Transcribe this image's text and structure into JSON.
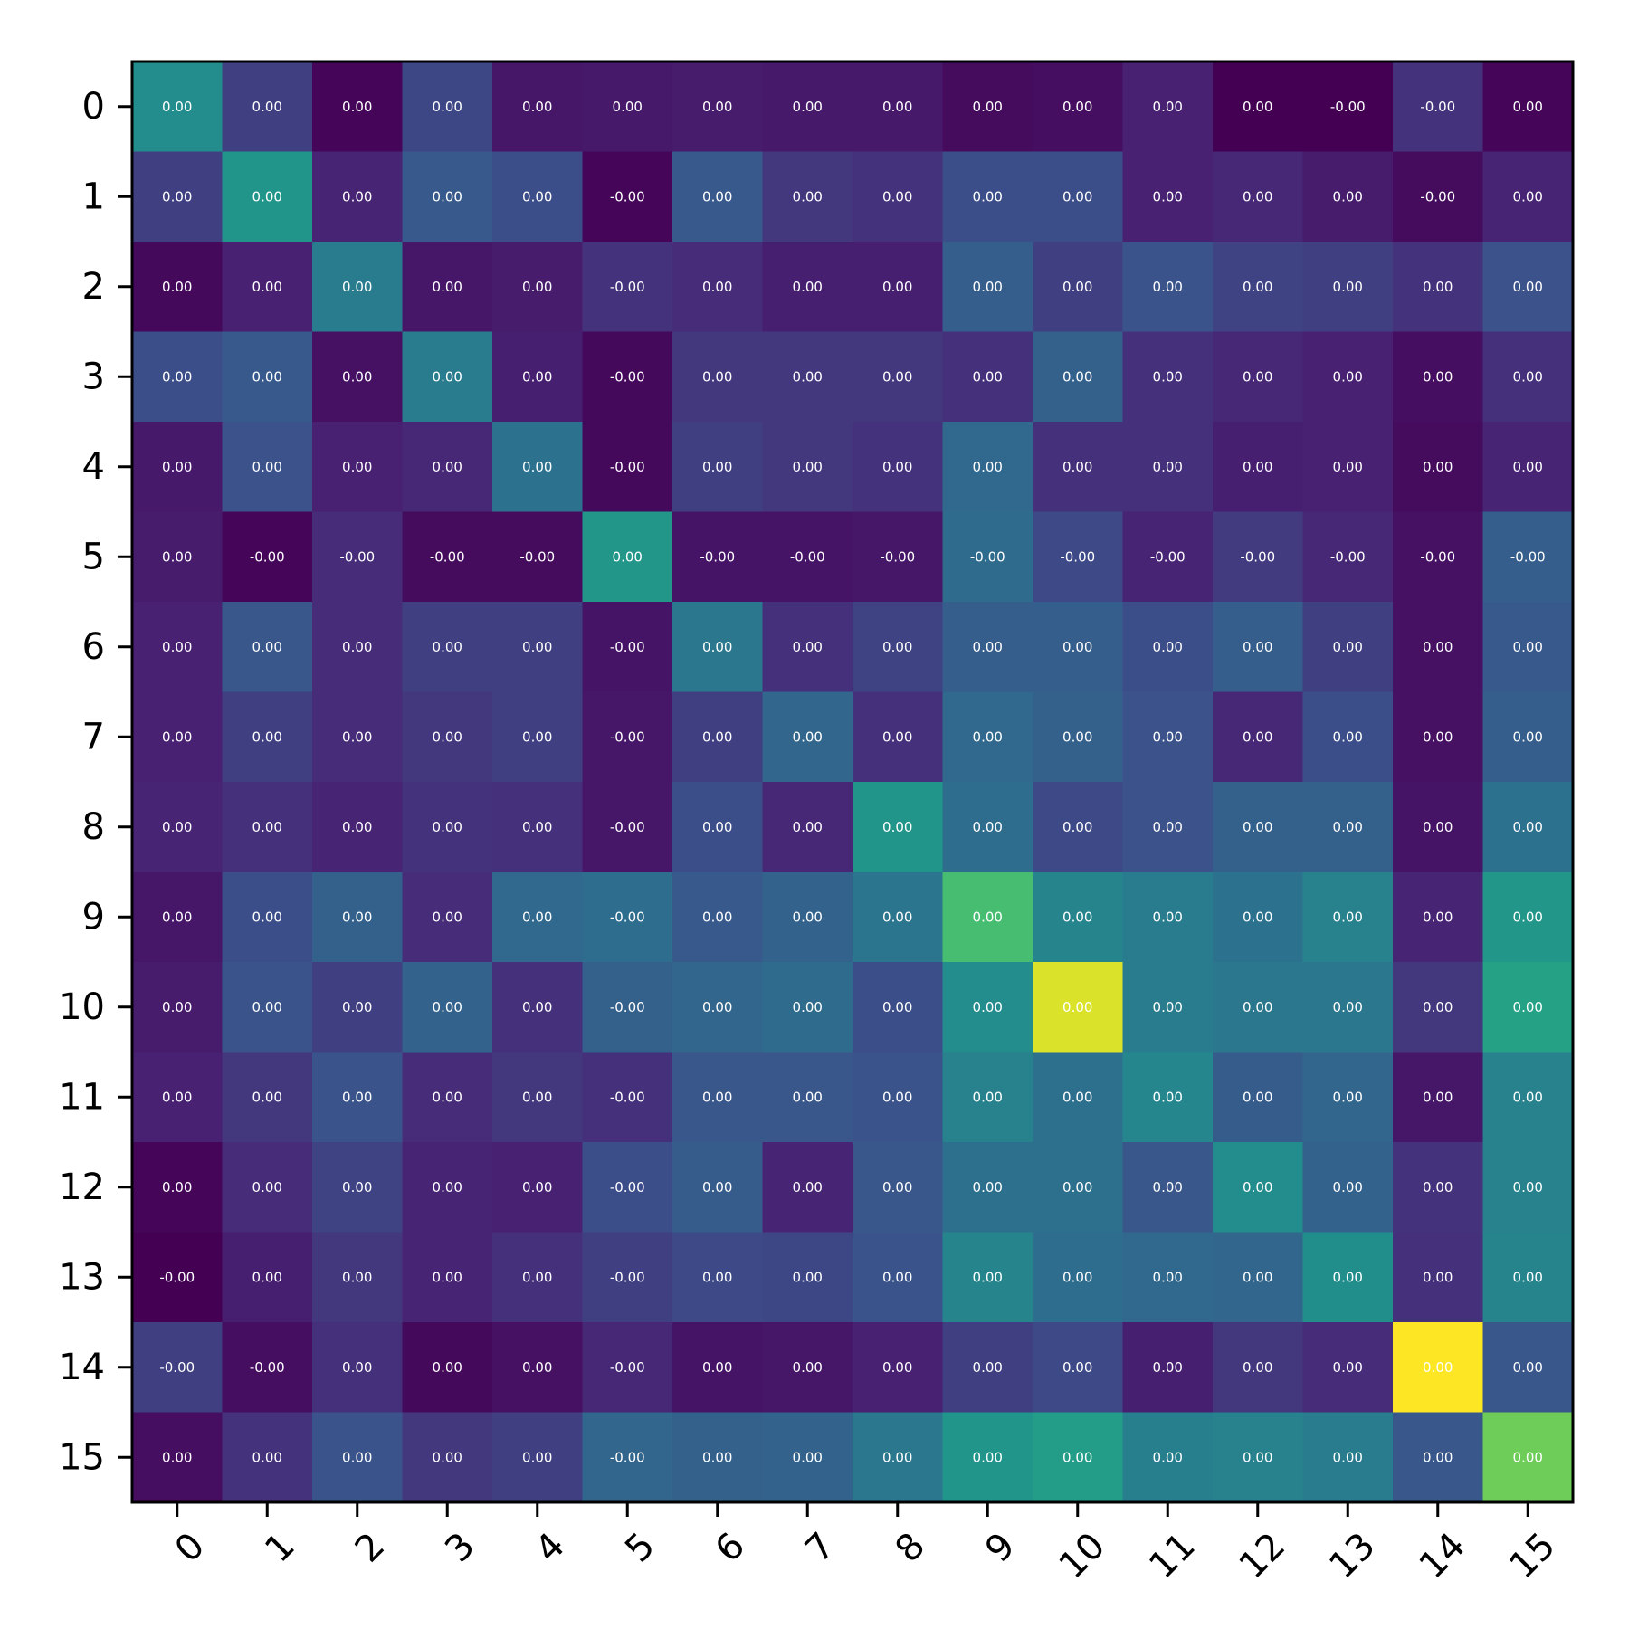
{
  "chart_data": {
    "type": "heatmap",
    "title": "",
    "xlabel": "",
    "ylabel": "",
    "x_categories": [
      "0",
      "1",
      "2",
      "3",
      "4",
      "5",
      "6",
      "7",
      "8",
      "9",
      "10",
      "11",
      "12",
      "13",
      "14",
      "15"
    ],
    "y_categories": [
      "0",
      "1",
      "2",
      "3",
      "4",
      "5",
      "6",
      "7",
      "8",
      "9",
      "10",
      "11",
      "12",
      "13",
      "14",
      "15"
    ],
    "colormap": "viridis",
    "cell_labels": [
      [
        "0.00",
        "0.00",
        "0.00",
        "0.00",
        "0.00",
        "0.00",
        "0.00",
        "0.00",
        "0.00",
        "0.00",
        "0.00",
        "0.00",
        "0.00",
        "-0.00",
        "-0.00",
        "0.00"
      ],
      [
        "0.00",
        "0.00",
        "0.00",
        "0.00",
        "0.00",
        "-0.00",
        "0.00",
        "0.00",
        "0.00",
        "0.00",
        "0.00",
        "0.00",
        "0.00",
        "0.00",
        "-0.00",
        "0.00"
      ],
      [
        "0.00",
        "0.00",
        "0.00",
        "0.00",
        "0.00",
        "-0.00",
        "0.00",
        "0.00",
        "0.00",
        "0.00",
        "0.00",
        "0.00",
        "0.00",
        "0.00",
        "0.00",
        "0.00"
      ],
      [
        "0.00",
        "0.00",
        "0.00",
        "0.00",
        "0.00",
        "-0.00",
        "0.00",
        "0.00",
        "0.00",
        "0.00",
        "0.00",
        "0.00",
        "0.00",
        "0.00",
        "0.00",
        "0.00"
      ],
      [
        "0.00",
        "0.00",
        "0.00",
        "0.00",
        "0.00",
        "-0.00",
        "0.00",
        "0.00",
        "0.00",
        "0.00",
        "0.00",
        "0.00",
        "0.00",
        "0.00",
        "0.00",
        "0.00"
      ],
      [
        "0.00",
        "-0.00",
        "-0.00",
        "-0.00",
        "-0.00",
        "0.00",
        "-0.00",
        "-0.00",
        "-0.00",
        "-0.00",
        "-0.00",
        "-0.00",
        "-0.00",
        "-0.00",
        "-0.00",
        "-0.00"
      ],
      [
        "0.00",
        "0.00",
        "0.00",
        "0.00",
        "0.00",
        "-0.00",
        "0.00",
        "0.00",
        "0.00",
        "0.00",
        "0.00",
        "0.00",
        "0.00",
        "0.00",
        "0.00",
        "0.00"
      ],
      [
        "0.00",
        "0.00",
        "0.00",
        "0.00",
        "0.00",
        "-0.00",
        "0.00",
        "0.00",
        "0.00",
        "0.00",
        "0.00",
        "0.00",
        "0.00",
        "0.00",
        "0.00",
        "0.00"
      ],
      [
        "0.00",
        "0.00",
        "0.00",
        "0.00",
        "0.00",
        "-0.00",
        "0.00",
        "0.00",
        "0.00",
        "0.00",
        "0.00",
        "0.00",
        "0.00",
        "0.00",
        "0.00",
        "0.00"
      ],
      [
        "0.00",
        "0.00",
        "0.00",
        "0.00",
        "0.00",
        "-0.00",
        "0.00",
        "0.00",
        "0.00",
        "0.00",
        "0.00",
        "0.00",
        "0.00",
        "0.00",
        "0.00",
        "0.00"
      ],
      [
        "0.00",
        "0.00",
        "0.00",
        "0.00",
        "0.00",
        "-0.00",
        "0.00",
        "0.00",
        "0.00",
        "0.00",
        "0.00",
        "0.00",
        "0.00",
        "0.00",
        "0.00",
        "0.00"
      ],
      [
        "0.00",
        "0.00",
        "0.00",
        "0.00",
        "0.00",
        "-0.00",
        "0.00",
        "0.00",
        "0.00",
        "0.00",
        "0.00",
        "0.00",
        "0.00",
        "0.00",
        "0.00",
        "0.00"
      ],
      [
        "0.00",
        "0.00",
        "0.00",
        "0.00",
        "0.00",
        "-0.00",
        "0.00",
        "0.00",
        "0.00",
        "0.00",
        "0.00",
        "0.00",
        "0.00",
        "0.00",
        "0.00",
        "0.00"
      ],
      [
        "-0.00",
        "0.00",
        "0.00",
        "0.00",
        "0.00",
        "-0.00",
        "0.00",
        "0.00",
        "0.00",
        "0.00",
        "0.00",
        "0.00",
        "0.00",
        "0.00",
        "0.00",
        "0.00"
      ],
      [
        "-0.00",
        "-0.00",
        "0.00",
        "0.00",
        "0.00",
        "-0.00",
        "0.00",
        "0.00",
        "0.00",
        "0.00",
        "0.00",
        "0.00",
        "0.00",
        "0.00",
        "0.00",
        "0.00"
      ],
      [
        "0.00",
        "0.00",
        "0.00",
        "0.00",
        "0.00",
        "-0.00",
        "0.00",
        "0.00",
        "0.00",
        "0.00",
        "0.00",
        "0.00",
        "0.00",
        "0.00",
        "0.00",
        "0.00"
      ]
    ],
    "intensity": [
      [
        0.48,
        0.2,
        0.02,
        0.22,
        0.08,
        0.09,
        0.1,
        0.09,
        0.09,
        0.04,
        0.05,
        0.12,
        0.0,
        0.0,
        0.17,
        0.02
      ],
      [
        0.2,
        0.52,
        0.13,
        0.28,
        0.24,
        0.02,
        0.28,
        0.18,
        0.17,
        0.24,
        0.24,
        0.12,
        0.14,
        0.1,
        0.04,
        0.13
      ],
      [
        0.03,
        0.12,
        0.42,
        0.08,
        0.1,
        0.17,
        0.15,
        0.11,
        0.11,
        0.3,
        0.2,
        0.26,
        0.21,
        0.2,
        0.17,
        0.25
      ],
      [
        0.24,
        0.28,
        0.06,
        0.42,
        0.11,
        0.03,
        0.18,
        0.18,
        0.18,
        0.16,
        0.31,
        0.16,
        0.14,
        0.12,
        0.05,
        0.16
      ],
      [
        0.09,
        0.25,
        0.12,
        0.14,
        0.38,
        0.03,
        0.2,
        0.18,
        0.17,
        0.34,
        0.16,
        0.16,
        0.11,
        0.12,
        0.04,
        0.13
      ],
      [
        0.1,
        0.02,
        0.15,
        0.04,
        0.04,
        0.53,
        0.07,
        0.07,
        0.08,
        0.35,
        0.23,
        0.13,
        0.19,
        0.14,
        0.06,
        0.3
      ],
      [
        0.12,
        0.27,
        0.15,
        0.2,
        0.2,
        0.07,
        0.4,
        0.16,
        0.21,
        0.3,
        0.3,
        0.24,
        0.3,
        0.2,
        0.06,
        0.28
      ],
      [
        0.12,
        0.2,
        0.15,
        0.18,
        0.2,
        0.08,
        0.2,
        0.33,
        0.16,
        0.34,
        0.31,
        0.25,
        0.14,
        0.24,
        0.06,
        0.3
      ],
      [
        0.13,
        0.16,
        0.13,
        0.17,
        0.16,
        0.08,
        0.24,
        0.14,
        0.52,
        0.36,
        0.23,
        0.25,
        0.31,
        0.31,
        0.07,
        0.38
      ],
      [
        0.08,
        0.24,
        0.31,
        0.15,
        0.34,
        0.36,
        0.28,
        0.32,
        0.39,
        0.7,
        0.45,
        0.42,
        0.38,
        0.44,
        0.13,
        0.53
      ],
      [
        0.1,
        0.26,
        0.2,
        0.32,
        0.16,
        0.31,
        0.33,
        0.35,
        0.24,
        0.48,
        0.95,
        0.42,
        0.4,
        0.4,
        0.18,
        0.58
      ],
      [
        0.12,
        0.18,
        0.26,
        0.15,
        0.18,
        0.16,
        0.27,
        0.27,
        0.26,
        0.44,
        0.37,
        0.46,
        0.29,
        0.33,
        0.08,
        0.44
      ],
      [
        0.02,
        0.15,
        0.21,
        0.13,
        0.12,
        0.24,
        0.29,
        0.13,
        0.27,
        0.37,
        0.37,
        0.27,
        0.48,
        0.32,
        0.17,
        0.44
      ],
      [
        0.0,
        0.11,
        0.18,
        0.13,
        0.16,
        0.2,
        0.23,
        0.22,
        0.26,
        0.45,
        0.36,
        0.34,
        0.33,
        0.49,
        0.16,
        0.45
      ],
      [
        0.2,
        0.05,
        0.16,
        0.03,
        0.06,
        0.14,
        0.07,
        0.08,
        0.12,
        0.2,
        0.23,
        0.11,
        0.18,
        0.15,
        1.0,
        0.27
      ],
      [
        0.05,
        0.17,
        0.26,
        0.18,
        0.2,
        0.33,
        0.31,
        0.32,
        0.4,
        0.52,
        0.55,
        0.43,
        0.44,
        0.42,
        0.27,
        0.78
      ]
    ],
    "grid": false,
    "legend": "none"
  }
}
